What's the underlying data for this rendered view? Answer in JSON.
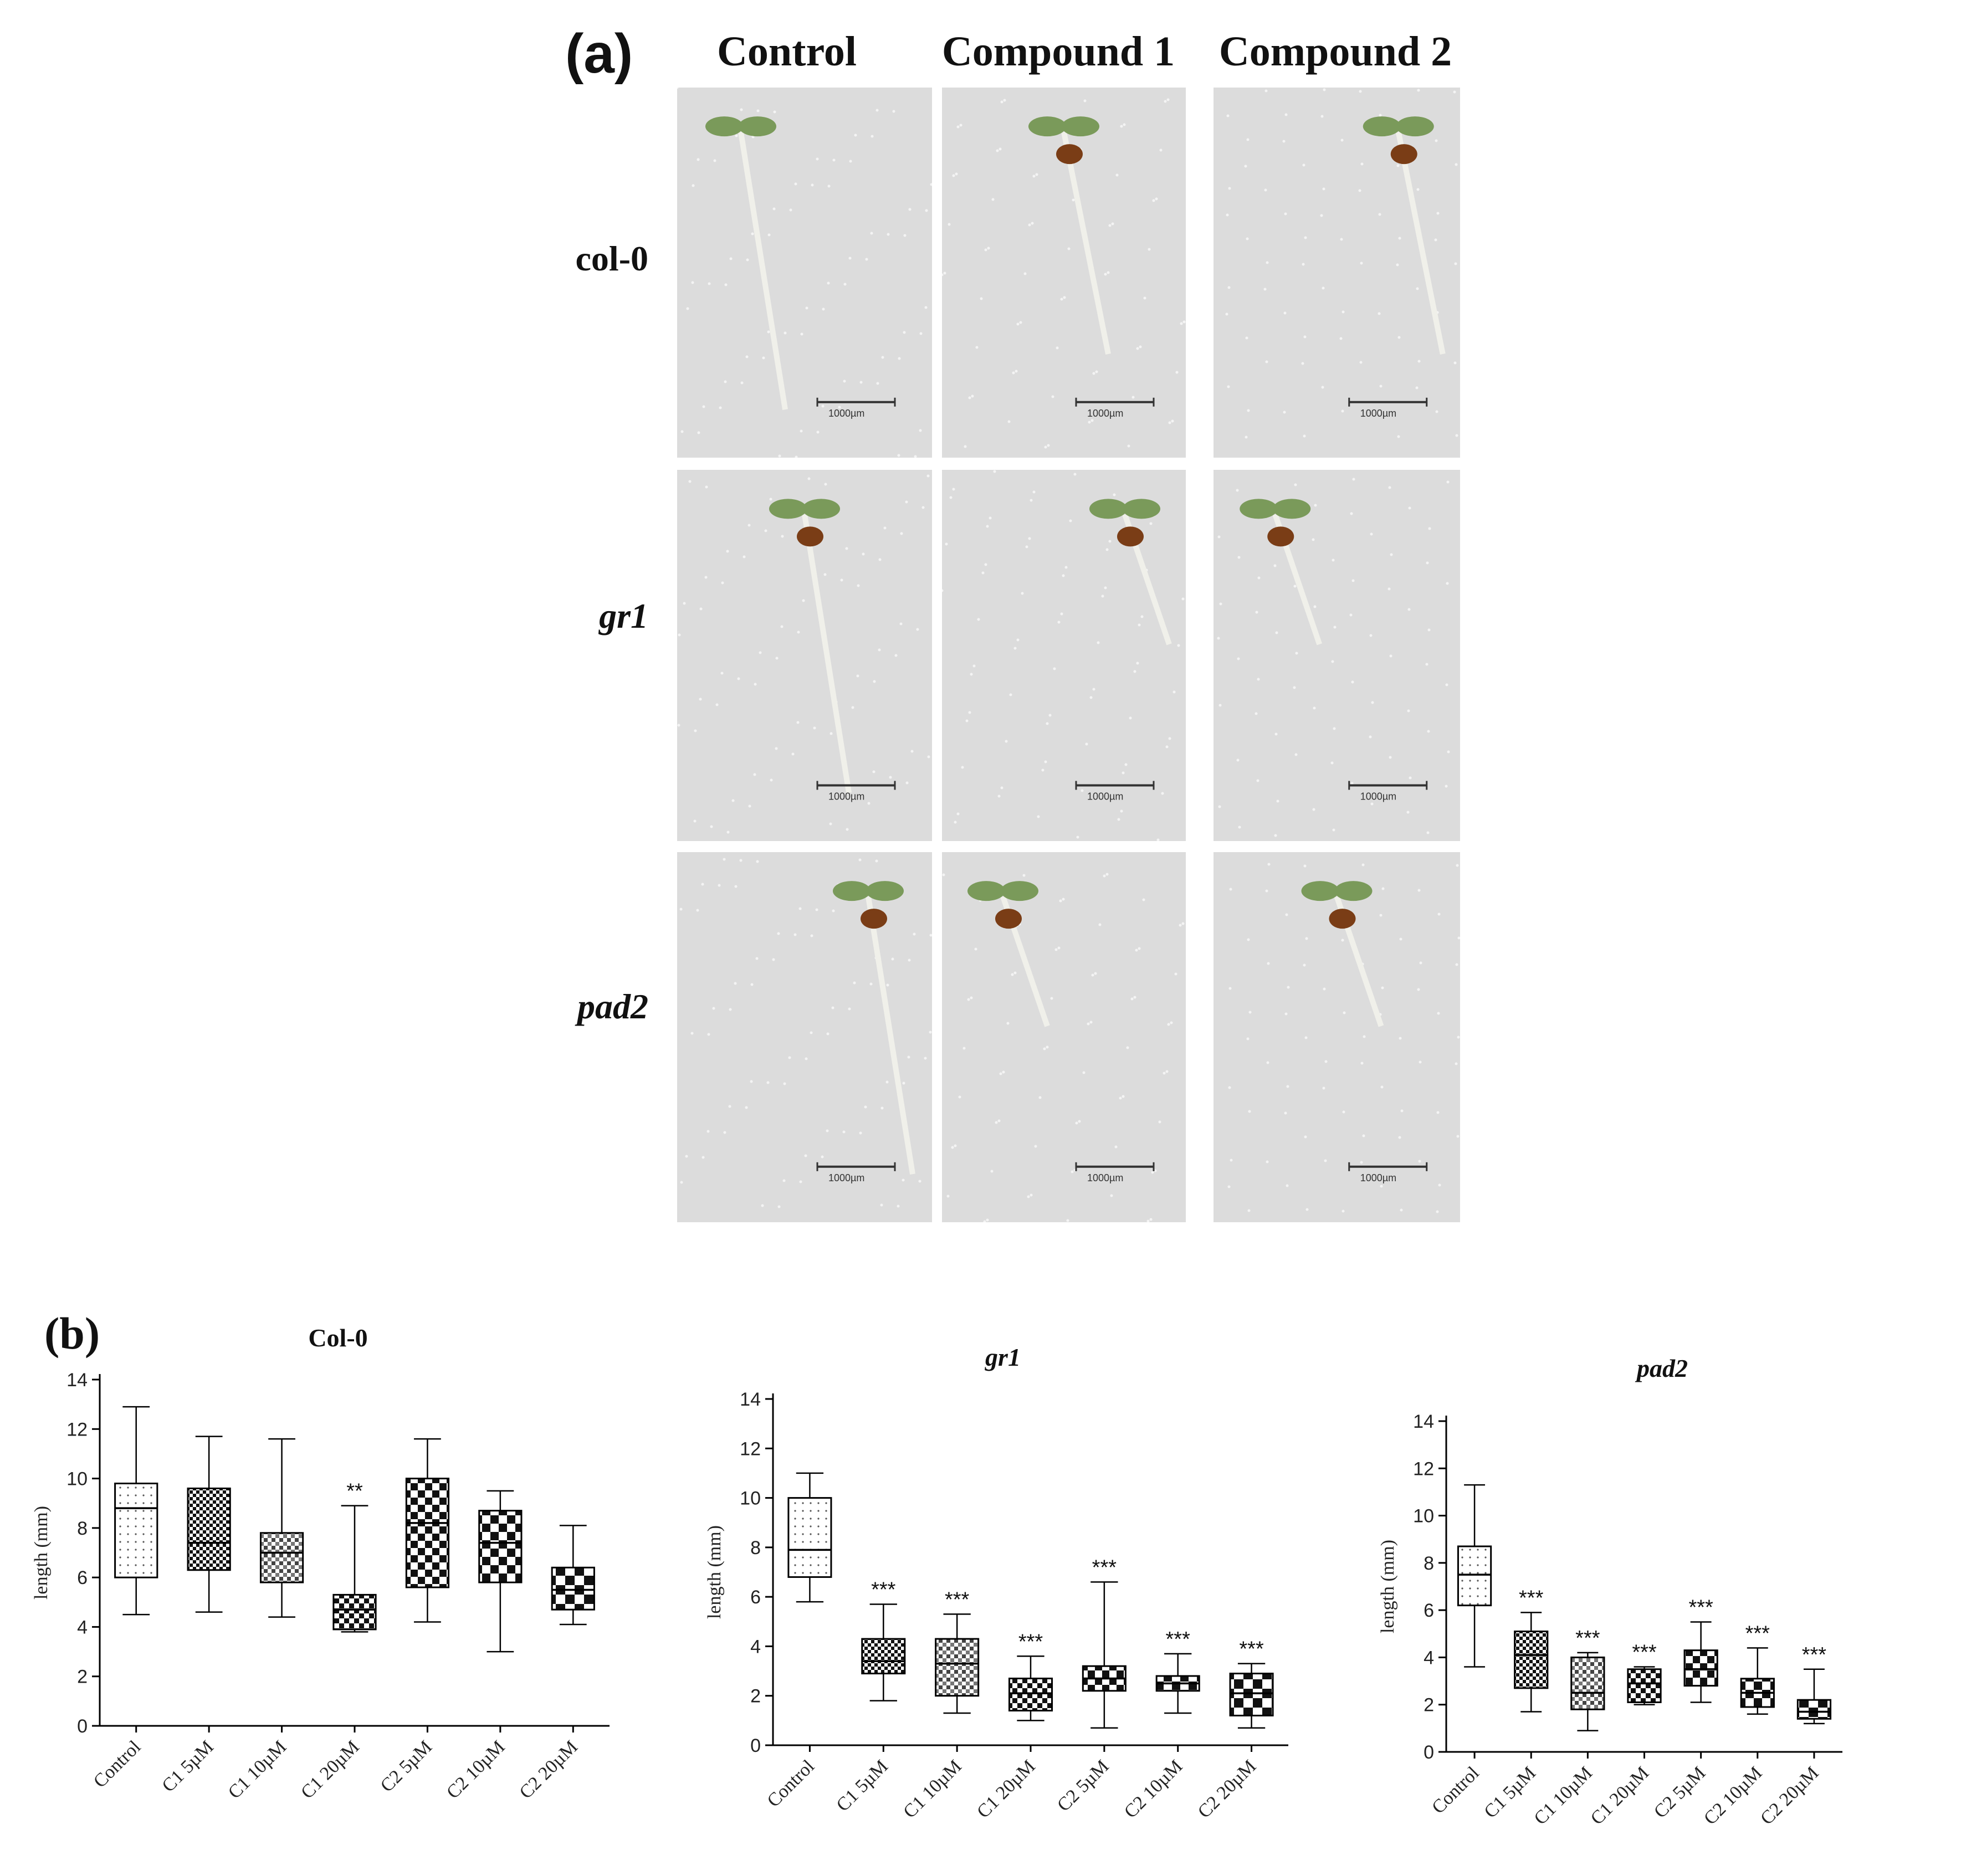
{
  "panel_a": {
    "label": "(a)",
    "columns": [
      "Control",
      "Compound 1",
      "Compound 2"
    ],
    "rows": [
      {
        "label": "col-0",
        "italic": false
      },
      {
        "label": "gr1",
        "italic": true
      },
      {
        "label": "pad2",
        "italic": true
      }
    ],
    "scale_bar_text": "1000µm"
  },
  "panel_b": {
    "label": "(b)"
  },
  "colors": {
    "axis": "#000000",
    "seedling_green": "#7a9a5a",
    "seed_brown": "#7a3d16",
    "paper": "#dcdcdc"
  },
  "chart_data": [
    {
      "type": "box",
      "title": "Col-0",
      "title_italic": false,
      "ylabel": "length (mm)",
      "ylim": [
        0,
        14
      ],
      "yticks": [
        0,
        2,
        4,
        6,
        8,
        10,
        12,
        14
      ],
      "categories": [
        "Control",
        "C1 5µM",
        "C1 10µM",
        "C1 20µM",
        "C2 5µM",
        "C2 10µM",
        "C2 20µM"
      ],
      "boxes": [
        {
          "min": 4.5,
          "q1": 6.0,
          "median": 8.8,
          "q3": 9.8,
          "max": 12.9
        },
        {
          "min": 4.6,
          "q1": 6.3,
          "median": 7.4,
          "q3": 9.6,
          "max": 11.7
        },
        {
          "min": 4.4,
          "q1": 5.8,
          "median": 7.0,
          "q3": 7.8,
          "max": 11.6
        },
        {
          "min": 3.8,
          "q1": 3.9,
          "median": 4.7,
          "q3": 5.3,
          "max": 8.9
        },
        {
          "min": 4.2,
          "q1": 5.6,
          "median": 8.2,
          "q3": 10.0,
          "max": 11.6
        },
        {
          "min": 3.0,
          "q1": 5.8,
          "median": 7.4,
          "q3": 8.7,
          "max": 9.5
        },
        {
          "min": 4.1,
          "q1": 4.7,
          "median": 5.5,
          "q3": 6.4,
          "max": 8.1
        }
      ],
      "annotations": [
        "",
        "",
        "",
        "**",
        "",
        "",
        ""
      ]
    },
    {
      "type": "box",
      "title": "gr1",
      "title_italic": true,
      "ylabel": "length (mm)",
      "ylim": [
        0,
        14
      ],
      "yticks": [
        0,
        2,
        4,
        6,
        8,
        10,
        12,
        14
      ],
      "categories": [
        "Control",
        "C1 5µM",
        "C1 10µM",
        "C1 20µM",
        "C2 5µM",
        "C2 10µM",
        "C2 20µM"
      ],
      "boxes": [
        {
          "min": 5.8,
          "q1": 6.8,
          "median": 7.9,
          "q3": 10.0,
          "max": 11.0
        },
        {
          "min": 1.8,
          "q1": 2.9,
          "median": 3.4,
          "q3": 4.3,
          "max": 5.7
        },
        {
          "min": 1.3,
          "q1": 2.0,
          "median": 3.3,
          "q3": 4.3,
          "max": 5.3
        },
        {
          "min": 1.0,
          "q1": 1.4,
          "median": 2.1,
          "q3": 2.7,
          "max": 3.6
        },
        {
          "min": 0.7,
          "q1": 2.2,
          "median": 2.7,
          "q3": 3.2,
          "max": 6.6
        },
        {
          "min": 1.3,
          "q1": 2.2,
          "median": 2.5,
          "q3": 2.8,
          "max": 3.7
        },
        {
          "min": 0.7,
          "q1": 1.2,
          "median": 2.1,
          "q3": 2.9,
          "max": 3.3
        }
      ],
      "annotations": [
        "",
        "***",
        "***",
        "***",
        "***",
        "***",
        "***"
      ]
    },
    {
      "type": "box",
      "title": "pad2",
      "title_italic": true,
      "ylabel": "length (mm)",
      "ylim": [
        0,
        14
      ],
      "yticks": [
        0,
        2,
        4,
        6,
        8,
        10,
        12,
        14
      ],
      "categories": [
        "Control",
        "C1 5µM",
        "C1 10µM",
        "C1 20µM",
        "C2 5µM",
        "C2 10µM",
        "C2 20µM"
      ],
      "boxes": [
        {
          "min": 3.6,
          "q1": 6.2,
          "median": 7.5,
          "q3": 8.7,
          "max": 11.3
        },
        {
          "min": 1.7,
          "q1": 2.7,
          "median": 4.1,
          "q3": 5.1,
          "max": 5.9
        },
        {
          "min": 0.9,
          "q1": 1.8,
          "median": 2.5,
          "q3": 4.0,
          "max": 4.2
        },
        {
          "min": 2.0,
          "q1": 2.1,
          "median": 2.9,
          "q3": 3.5,
          "max": 3.6
        },
        {
          "min": 2.1,
          "q1": 2.8,
          "median": 3.5,
          "q3": 4.3,
          "max": 5.5
        },
        {
          "min": 1.6,
          "q1": 1.9,
          "median": 2.5,
          "q3": 3.1,
          "max": 4.4
        },
        {
          "min": 1.2,
          "q1": 1.4,
          "median": 1.7,
          "q3": 2.2,
          "max": 3.5
        }
      ],
      "annotations": [
        "",
        "***",
        "***",
        "***",
        "***",
        "***",
        "***"
      ]
    }
  ]
}
